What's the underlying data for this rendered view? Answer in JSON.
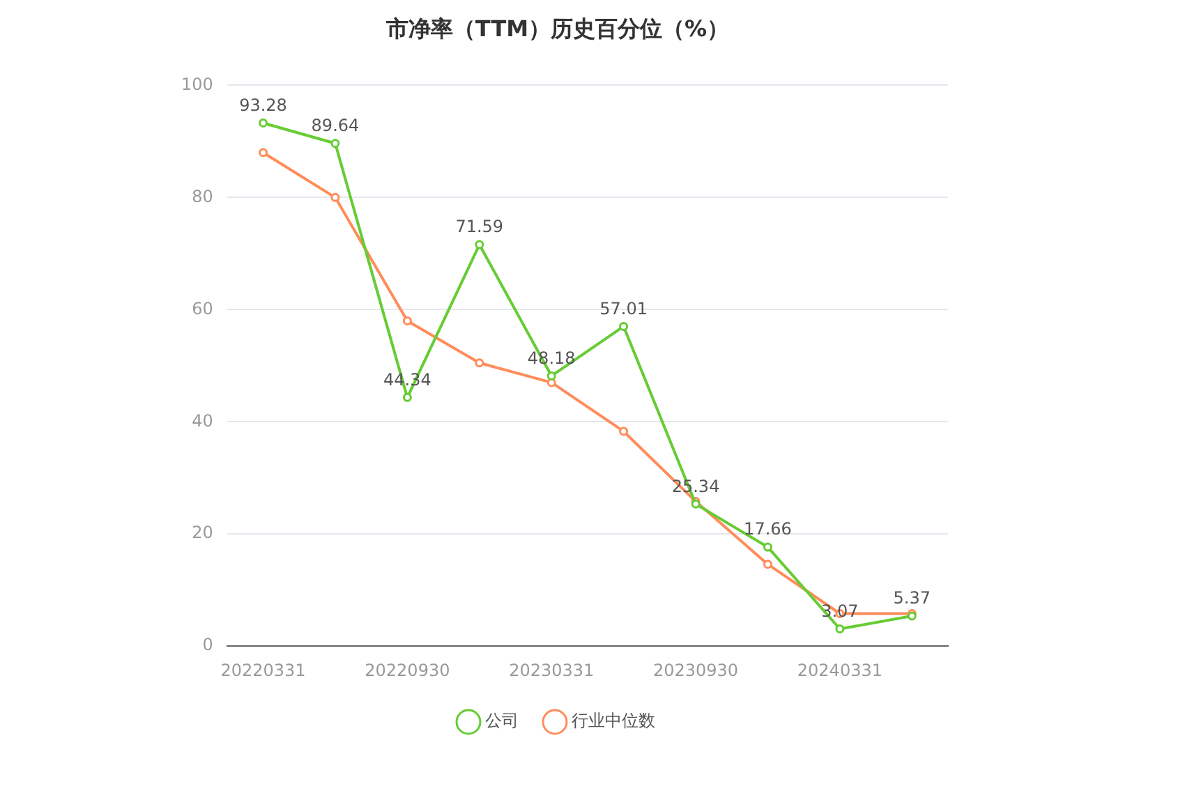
{
  "chart_data": {
    "type": "line",
    "title": "市净率（TTM）历史百分位（%）",
    "categories": [
      "20220331",
      null,
      "20220930",
      null,
      "20230331",
      null,
      "20230930",
      null,
      "20240331",
      null
    ],
    "series": [
      {
        "name": "公司",
        "color": "#66cc33",
        "values": [
          93.28,
          89.64,
          44.34,
          71.59,
          48.18,
          57.01,
          25.34,
          17.66,
          3.07,
          5.37
        ],
        "value_labels": [
          "93.28",
          "89.64",
          "44.34",
          "71.59",
          "48.18",
          "57.01",
          "25.34",
          "17.66",
          "3.07",
          "5.37"
        ]
      },
      {
        "name": "行业中位数",
        "color": "#ff8c5a",
        "values": [
          88,
          80,
          58,
          50.5,
          47,
          38.3,
          25.8,
          14.6,
          5.8,
          5.8
        ]
      }
    ],
    "ylim": [
      0,
      100
    ],
    "yticks": [
      0,
      20,
      40,
      60,
      80,
      100
    ],
    "grid": "y",
    "legend": "bottom",
    "marker": "circle",
    "line_style": "solid"
  }
}
